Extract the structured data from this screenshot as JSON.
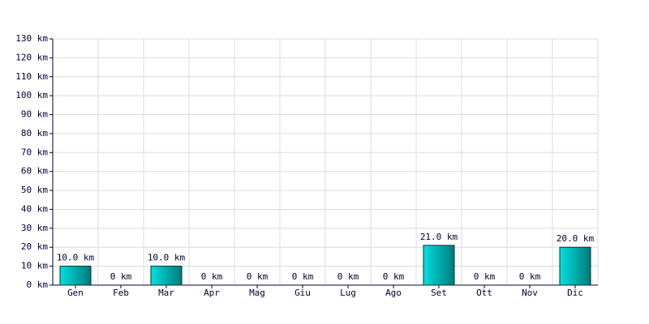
{
  "chart_data": {
    "type": "bar",
    "categories": [
      "Gen",
      "Feb",
      "Mar",
      "Apr",
      "Mag",
      "Giu",
      "Lug",
      "Ago",
      "Set",
      "Ott",
      "Nov",
      "Dic"
    ],
    "values": [
      10,
      0,
      10,
      0,
      0,
      0,
      0,
      0,
      21,
      0,
      0,
      20
    ],
    "value_labels": [
      "10.0 km",
      "0 km",
      "10.0 km",
      "0 km",
      "0 km",
      "0 km",
      "0 km",
      "0 km",
      "21.0 km",
      "0 km",
      "0 km",
      "20.0 km"
    ],
    "color": "#00e0e0",
    "ylim": [
      0,
      130
    ],
    "yticks": [
      {
        "value": 0,
        "label": "0 km"
      },
      {
        "value": 10,
        "label": "10 km"
      },
      {
        "value": 20,
        "label": "20 km"
      },
      {
        "value": 30,
        "label": "30 km"
      },
      {
        "value": 40,
        "label": "40 km"
      },
      {
        "value": 50,
        "label": "50 km"
      },
      {
        "value": 60,
        "label": "60 km"
      },
      {
        "value": 70,
        "label": "70 km"
      },
      {
        "value": 80,
        "label": "80 km"
      },
      {
        "value": 90,
        "label": "90 km"
      },
      {
        "value": 100,
        "label": "100 km"
      },
      {
        "value": 110,
        "label": "110 km"
      },
      {
        "value": 120,
        "label": "120 km"
      },
      {
        "value": 130,
        "label": "130 km"
      }
    ],
    "grid": true
  }
}
